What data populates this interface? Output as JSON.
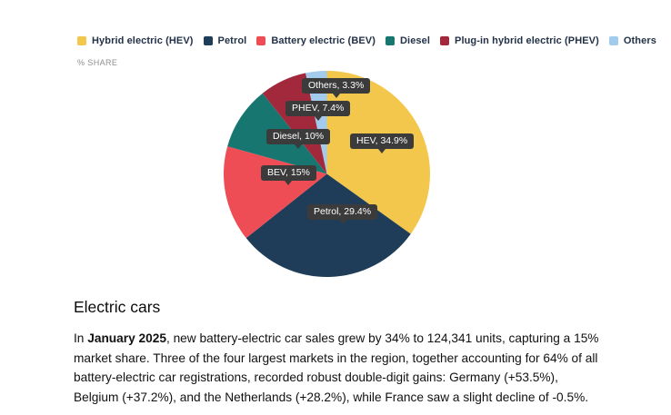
{
  "legend": {
    "items": [
      {
        "label": "Hybrid electric (HEV)"
      },
      {
        "label": "Petrol"
      },
      {
        "label": "Battery electric (BEV)"
      },
      {
        "label": "Diesel"
      },
      {
        "label": "Plug-in hybrid electric (PHEV)"
      },
      {
        "label": "Others"
      }
    ]
  },
  "chart_data": {
    "type": "pie",
    "unit_label": "% SHARE",
    "categories": [
      "HEV",
      "Petrol",
      "BEV",
      "Diesel",
      "PHEV",
      "Others"
    ],
    "legend_labels": [
      "Hybrid electric (HEV)",
      "Petrol",
      "Battery electric (BEV)",
      "Diesel",
      "Plug-in hybrid electric (PHEV)",
      "Others"
    ],
    "values": [
      34.9,
      29.4,
      15,
      10,
      7.4,
      3.3
    ],
    "colors": [
      "#F3C74B",
      "#1F3D58",
      "#EF4D56",
      "#17766F",
      "#A2283C",
      "#A3CBED"
    ],
    "callouts": [
      "HEV, 34.9%",
      "Petrol, 29.4%",
      "BEV, 15%",
      "Diesel, 10%",
      "PHEV, 7.4%",
      "Others, 3.3%"
    ],
    "callout_bg": "#3B3B3B",
    "legend_position": "top",
    "start_angle_deg": -90,
    "direction": "clockwise"
  },
  "article": {
    "heading": "Electric cars",
    "paragraph": {
      "prefix": "In ",
      "bold": "January 2025",
      "rest": ", new battery-electric car sales grew by 34% to 124,341 units, capturing a 15% market share. Three of the four largest markets in the region, together accounting for 64% of all battery-electric car registrations, recorded robust double-digit gains: Germany (+53.5%), Belgium (+37.2%), and the Netherlands (+28.2%), while France saw a slight decline of -0.5%."
    }
  }
}
